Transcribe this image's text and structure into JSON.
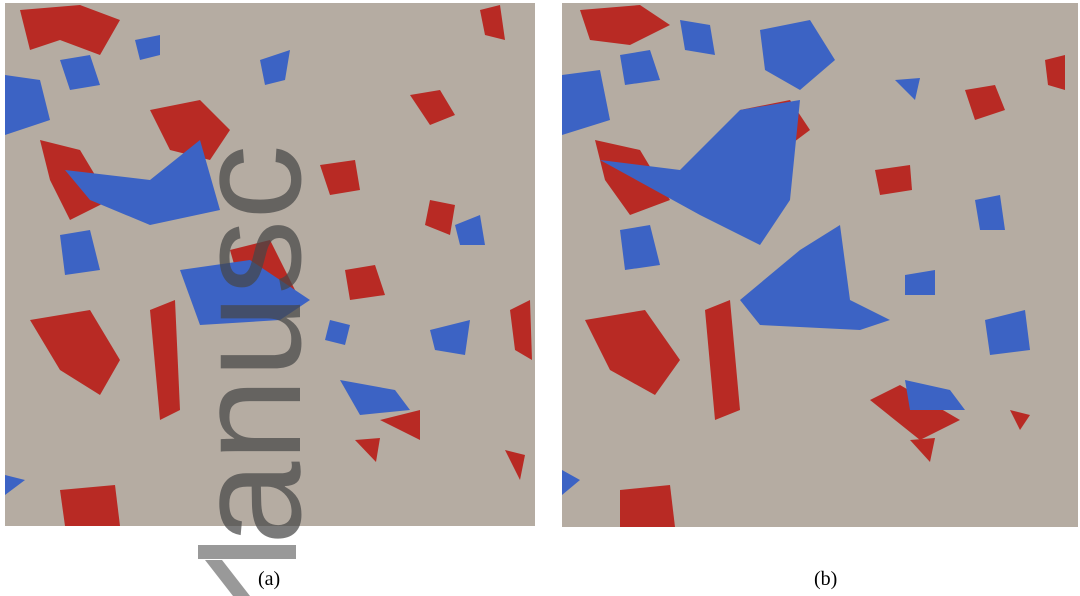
{
  "figure": {
    "panels": [
      {
        "label": "(a)"
      },
      {
        "label": "(b)"
      }
    ]
  },
  "watermark": "anusc"
}
